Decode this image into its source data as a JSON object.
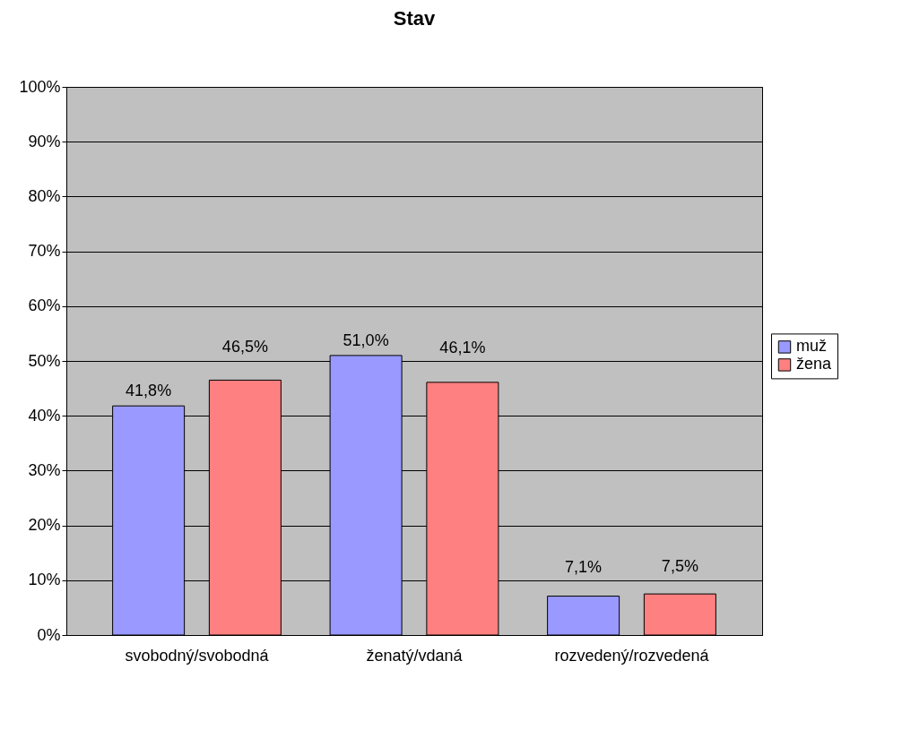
{
  "chart_data": {
    "type": "bar",
    "title": "Stav",
    "categories": [
      "svobodný/svobodná",
      "ženatý/vdaná",
      "rozvedený/rozvedená"
    ],
    "series": [
      {
        "name": "muž",
        "color": "#9999ff",
        "values": [
          41.8,
          51.0,
          7.1
        ],
        "value_labels": [
          "41,8%",
          "51,0%",
          "7,1%"
        ]
      },
      {
        "name": "žena",
        "color": "#ff8080",
        "values": [
          46.5,
          46.1,
          7.5
        ],
        "value_labels": [
          "46,5%",
          "46,1%",
          "7,5%"
        ]
      }
    ],
    "ylim": [
      0,
      100
    ],
    "yticks": [
      {
        "value": 0,
        "label": "0%"
      },
      {
        "value": 10,
        "label": "10%"
      },
      {
        "value": 20,
        "label": "20%"
      },
      {
        "value": 30,
        "label": "30%"
      },
      {
        "value": 40,
        "label": "40%"
      },
      {
        "value": 50,
        "label": "50%"
      },
      {
        "value": 60,
        "label": "60%"
      },
      {
        "value": 70,
        "label": "70%"
      },
      {
        "value": 80,
        "label": "80%"
      },
      {
        "value": 90,
        "label": "90%"
      },
      {
        "value": 100,
        "label": "100%"
      }
    ],
    "grid": "y",
    "legend": "right"
  }
}
